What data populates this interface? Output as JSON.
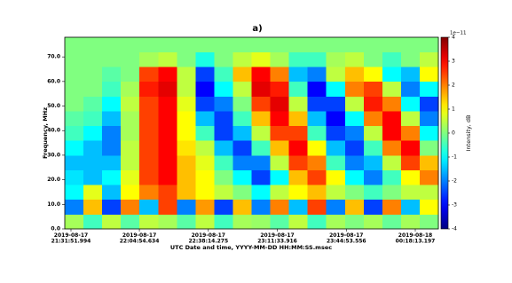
{
  "chart_data": {
    "type": "heatmap",
    "title": "a)",
    "xlabel": "UTC Date and time, YYYY-MM-DD HH:MM:SS.msec",
    "ylabel": "Frequency, MHz",
    "colormap": "jet",
    "colorbar_label": "Intensity, dB",
    "colorbar_offset_label": "1e−11",
    "zlim": [
      -4,
      4
    ],
    "zticks": [
      -4,
      -3,
      -2,
      -1,
      0,
      1,
      2,
      3,
      4
    ],
    "xlim": [
      -180,
      10650
    ],
    "xticks": [
      {
        "value": 0,
        "label": "2019-08-17\n21:31:51.994"
      },
      {
        "value": 1982.64,
        "label": "2019-08-17\n22:04:54.634"
      },
      {
        "value": 3982.28,
        "label": "2019-08-17\n22:38:14.275"
      },
      {
        "value": 5981.92,
        "label": "2019-08-17\n23:11:33.916"
      },
      {
        "value": 7981.56,
        "label": "2019-08-17\n23:44:53.556"
      },
      {
        "value": 9981.2,
        "label": "2019-08-18\n00:18:13.197"
      }
    ],
    "ylim": [
      0,
      78
    ],
    "yticks": [
      {
        "value": 0,
        "label": "0.0"
      },
      {
        "value": 10,
        "label": "10.0"
      },
      {
        "value": 20,
        "label": "20.0"
      },
      {
        "value": 30,
        "label": "30.0"
      },
      {
        "value": 40,
        "label": "40.0"
      },
      {
        "value": 50,
        "label": "50.0"
      },
      {
        "value": 60,
        "label": "60.0"
      },
      {
        "value": 70,
        "label": "70.0"
      }
    ],
    "z": [
      [
        0.3,
        -0.5,
        0.5,
        -0.3,
        0.5,
        0.3,
        -0.3,
        0.5,
        -0.5,
        0.3,
        0.2,
        -0.3,
        0.5,
        -0.5,
        0.3,
        0,
        0.3,
        -0.2,
        0.3,
        0
      ],
      [
        -2,
        1.5,
        -2.5,
        2,
        -1.5,
        2.5,
        -2,
        1.8,
        -2.5,
        1.5,
        -2,
        2,
        -1.5,
        2.5,
        -2,
        1.5,
        -2.5,
        2,
        -1.5,
        1
      ],
      [
        -1,
        0.8,
        -1.5,
        1,
        2,
        2.5,
        1.5,
        1,
        0.5,
        0,
        -1,
        0.5,
        1,
        1.5,
        0.5,
        0,
        -0.5,
        0,
        0.5,
        0.5
      ],
      [
        -1.2,
        -1.5,
        -1,
        0.8,
        2.5,
        3,
        1.5,
        1,
        0,
        -1,
        -2.5,
        -1,
        1.5,
        2.5,
        1,
        -1,
        -2,
        -0.5,
        1,
        2
      ],
      [
        -1.5,
        -1.5,
        -1.5,
        0.5,
        2.5,
        3,
        1.5,
        0.8,
        -0.5,
        -2,
        -2,
        0.5,
        2.5,
        2,
        -0.5,
        -2,
        -1.5,
        0.5,
        2.5,
        1.5
      ],
      [
        -1,
        -1.5,
        -2,
        0.5,
        2.5,
        3,
        1.2,
        0.5,
        -1.5,
        -2.5,
        -0.5,
        1.5,
        3,
        1,
        -1.5,
        -2.5,
        -0.5,
        2,
        3,
        0
      ],
      [
        -0.5,
        -1,
        -2,
        0.3,
        2.5,
        3,
        1,
        -0.5,
        -2.5,
        -1.5,
        0.5,
        2.5,
        2.5,
        -0.5,
        -2.5,
        -2,
        0.5,
        3,
        2,
        -1
      ],
      [
        -0.3,
        -0.5,
        -1.5,
        0.3,
        2.5,
        3,
        1,
        -1.5,
        -2.5,
        -0.5,
        1.5,
        3,
        1.5,
        -1.5,
        -3,
        -1,
        2,
        3,
        0.5,
        -2
      ],
      [
        0,
        -0.3,
        -1,
        0.5,
        2.5,
        3,
        0.8,
        -2.5,
        -2,
        0,
        2.5,
        3.2,
        0.5,
        -2.5,
        -2.5,
        0.5,
        2.8,
        2,
        -1,
        -2.5
      ],
      [
        0,
        0,
        -0.5,
        0.3,
        2.8,
        3.2,
        0.5,
        -3,
        -1,
        0.5,
        3.2,
        2.8,
        -0.5,
        -3,
        -1,
        2,
        2.5,
        0.5,
        -2,
        -1
      ],
      [
        0,
        0,
        -0.3,
        0,
        2.5,
        3,
        0.5,
        -2.5,
        -0.5,
        1.5,
        3,
        2,
        -1.5,
        -2,
        0.5,
        1.5,
        1,
        -1,
        -1.5,
        1
      ],
      [
        0,
        0,
        0,
        0,
        0.3,
        0.5,
        0,
        -0.8,
        0,
        0.5,
        0.8,
        0.3,
        -0.5,
        -0.5,
        0.3,
        0.5,
        0,
        -0.5,
        0,
        0.5
      ],
      [
        0,
        0,
        0,
        0,
        0,
        0,
        0,
        0,
        0,
        0,
        0,
        0,
        0,
        0,
        0,
        0,
        0,
        0,
        0,
        0
      ]
    ]
  }
}
